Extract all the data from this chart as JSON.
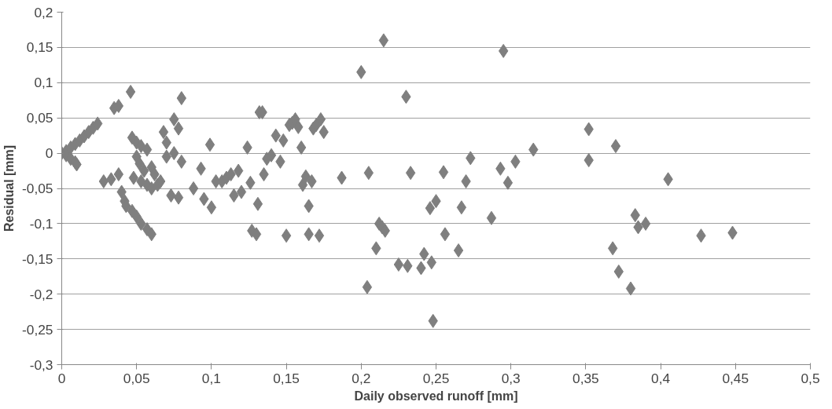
{
  "chart_data": {
    "type": "scatter",
    "xlabel": "Daily observed runoff [mm]",
    "ylabel": "Residual [mm]",
    "marker": "diamond",
    "grid": "y",
    "xlim": [
      0,
      0.5
    ],
    "ylim": [
      -0.3,
      0.2
    ],
    "xticks": [
      {
        "value": 0,
        "label": "0"
      },
      {
        "value": 0.05,
        "label": "0,05"
      },
      {
        "value": 0.1,
        "label": "0,1"
      },
      {
        "value": 0.15,
        "label": "0,15"
      },
      {
        "value": 0.2,
        "label": "0,2"
      },
      {
        "value": 0.25,
        "label": "0,25"
      },
      {
        "value": 0.3,
        "label": "0,3"
      },
      {
        "value": 0.35,
        "label": "0,35"
      },
      {
        "value": 0.4,
        "label": "0,4"
      },
      {
        "value": 0.45,
        "label": "0,45"
      },
      {
        "value": 0.5,
        "label": "0,5"
      }
    ],
    "yticks": [
      {
        "value": -0.3,
        "label": "-0,3"
      },
      {
        "value": -0.25,
        "label": "-0,25"
      },
      {
        "value": -0.2,
        "label": "-0,2"
      },
      {
        "value": -0.15,
        "label": "-0,15"
      },
      {
        "value": -0.1,
        "label": "-0,1"
      },
      {
        "value": -0.05,
        "label": "-0,05"
      },
      {
        "value": 0,
        "label": "0"
      },
      {
        "value": 0.05,
        "label": "0,05"
      },
      {
        "value": 0.1,
        "label": "0,1"
      },
      {
        "value": 0.15,
        "label": "0,15"
      },
      {
        "value": 0.2,
        "label": "0,2"
      }
    ],
    "series": [
      {
        "color": "#7f7f7f",
        "x": [
          0,
          0.003,
          0.006,
          0.009,
          0.012,
          0.015,
          0.018,
          0.021,
          0.024,
          0.003,
          0.006,
          0.009,
          0.01,
          0.035,
          0.038,
          0.046,
          0.028,
          0.033,
          0.038,
          0.04,
          0.042,
          0.043,
          0.047,
          0.05,
          0.053,
          0.057,
          0.06,
          0.047,
          0.05,
          0.053,
          0.057,
          0.05,
          0.052,
          0.055,
          0.06,
          0.062,
          0.048,
          0.053,
          0.057,
          0.06,
          0.064,
          0.066,
          0.068,
          0.07,
          0.07,
          0.073,
          0.075,
          0.078,
          0.078,
          0.08,
          0.08,
          0.075,
          0.088,
          0.093,
          0.095,
          0.099,
          0.1,
          0.103,
          0.107,
          0.11,
          0.113,
          0.115,
          0.118,
          0.12,
          0.124,
          0.126,
          0.127,
          0.13,
          0.131,
          0.132,
          0.134,
          0.135,
          0.137,
          0.14,
          0.143,
          0.146,
          0.148,
          0.15,
          0.152,
          0.154,
          0.156,
          0.158,
          0.16,
          0.161,
          0.163,
          0.165,
          0.165,
          0.167,
          0.168,
          0.17,
          0.172,
          0.173,
          0.175,
          0.187,
          0.2,
          0.204,
          0.205,
          0.21,
          0.212,
          0.214,
          0.215,
          0.216,
          0.225,
          0.23,
          0.231,
          0.233,
          0.24,
          0.242,
          0.246,
          0.247,
          0.248,
          0.25,
          0.255,
          0.256,
          0.265,
          0.267,
          0.27,
          0.273,
          0.287,
          0.293,
          0.295,
          0.298,
          0.303,
          0.315,
          0.352,
          0.352,
          0.37,
          0.368,
          0.372,
          0.38,
          0.383,
          0.385,
          0.39,
          0.405,
          0.427,
          0.448
        ],
        "values": [
          0,
          0.003,
          0.008,
          0.013,
          0.018,
          0.024,
          0.03,
          0.036,
          0.042,
          -0.003,
          -0.008,
          -0.013,
          -0.016,
          0.064,
          0.067,
          0.087,
          -0.04,
          -0.037,
          -0.03,
          -0.055,
          -0.068,
          -0.075,
          -0.082,
          -0.09,
          -0.1,
          -0.108,
          -0.115,
          0.022,
          0.015,
          0.01,
          0.005,
          -0.005,
          -0.015,
          -0.025,
          -0.02,
          -0.03,
          -0.035,
          -0.04,
          -0.045,
          -0.05,
          -0.045,
          -0.04,
          0.03,
          0.015,
          -0.005,
          -0.06,
          0.048,
          -0.063,
          0.035,
          -0.012,
          0.078,
          0.0,
          -0.05,
          -0.022,
          -0.065,
          0.012,
          -0.077,
          -0.04,
          -0.04,
          -0.035,
          -0.03,
          -0.06,
          -0.025,
          -0.055,
          0.008,
          -0.042,
          -0.11,
          -0.115,
          -0.072,
          0.058,
          0.058,
          -0.03,
          -0.008,
          -0.003,
          0.025,
          -0.012,
          0.018,
          -0.117,
          0.04,
          0.043,
          0.048,
          0.037,
          0.008,
          -0.045,
          -0.033,
          -0.075,
          -0.115,
          -0.04,
          0.035,
          0.04,
          -0.117,
          0.048,
          0.03,
          -0.035,
          0.115,
          -0.19,
          -0.028,
          -0.135,
          -0.1,
          -0.105,
          0.16,
          -0.11,
          -0.158,
          0.08,
          -0.16,
          -0.028,
          -0.163,
          -0.143,
          -0.078,
          -0.155,
          -0.238,
          -0.068,
          -0.027,
          -0.115,
          -0.138,
          -0.077,
          -0.04,
          -0.007,
          -0.092,
          -0.022,
          0.145,
          -0.042,
          -0.012,
          0.005,
          0.034,
          -0.01,
          0.01,
          -0.135,
          -0.168,
          -0.192,
          -0.088,
          -0.105,
          -0.1,
          -0.037,
          -0.117,
          -0.113
        ]
      }
    ]
  }
}
